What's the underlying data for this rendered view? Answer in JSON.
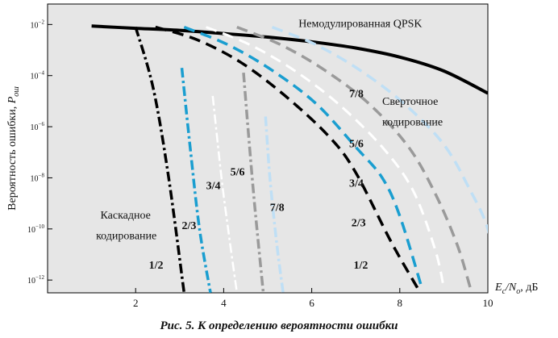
{
  "chart_data": {
    "type": "line",
    "ylabel": "Вероятность ошибки, P_ош",
    "ylabel_main": "Вероятность ошибки, ",
    "ylabel_sym": "P",
    "ylabel_sub": "ош",
    "xlabel": "Ec/No, дБ",
    "xlabel_E": "E",
    "xlabel_c": "c",
    "xlabel_slash": "/N",
    "xlabel_o": "o",
    "xlabel_unit": ", дБ",
    "xlim": [
      0,
      10
    ],
    "ylim_log10": [
      -12.5,
      -1.2
    ],
    "yscale": "log",
    "x_ticks": [
      2,
      4,
      6,
      8,
      10
    ],
    "x_tick_labels": [
      "2",
      "4",
      "6",
      "8",
      "10"
    ],
    "y_ticks": [
      {
        "exp": -2,
        "label_base": "10",
        "label_exp": "−2"
      },
      {
        "exp": -4,
        "label_base": "10",
        "label_exp": "−4"
      },
      {
        "exp": -6,
        "label_base": "10",
        "label_exp": "−6"
      },
      {
        "exp": -8,
        "label_base": "10",
        "label_exp": "−8"
      },
      {
        "exp": -10,
        "label_base": "10",
        "label_exp": "−10"
      },
      {
        "exp": -12,
        "label_base": "10",
        "label_exp": "−12"
      }
    ],
    "grid": false,
    "series": [
      {
        "group": "uncoded",
        "color": "#000000",
        "dash": "solid",
        "width": 4,
        "points": [
          [
            1.0,
            0.0087
          ],
          [
            2.0,
            0.0071
          ],
          [
            3.0,
            0.0059
          ],
          [
            4.0,
            0.0044
          ],
          [
            5.0,
            0.0032
          ],
          [
            6.0,
            0.0021
          ],
          [
            7.0,
            0.0012
          ],
          [
            8.0,
            0.00053
          ],
          [
            9.0,
            0.000151
          ],
          [
            10.0,
            2.04e-05
          ]
        ]
      },
      {
        "group": "concatenated",
        "rate": "1/2",
        "color": "#000000",
        "dash": "dashdot",
        "width": 3.5,
        "points": [
          [
            2.0,
            0.0079
          ],
          [
            2.4,
            3.2e-05
          ],
          [
            2.75,
            1e-08
          ],
          [
            3.1,
            3.2e-13
          ]
        ]
      },
      {
        "group": "concatenated",
        "rate": "2/3",
        "color": "#1a9ed0",
        "dash": "dashdot",
        "width": 3.5,
        "points": [
          [
            3.05,
            0.0002
          ],
          [
            3.25,
            1e-07
          ],
          [
            3.45,
            1e-10
          ],
          [
            3.7,
            3.2e-13
          ]
        ]
      },
      {
        "group": "concatenated",
        "rate": "3/4",
        "color": "#ffffff",
        "dash": "dashdot",
        "width": 2.5,
        "points": [
          [
            3.75,
            1.6e-05
          ],
          [
            3.95,
            1e-08
          ],
          [
            4.1,
            1e-10
          ],
          [
            4.3,
            3.2e-13
          ]
        ]
      },
      {
        "group": "concatenated",
        "rate": "5/6",
        "color": "#9a9a9a",
        "dash": "dashdot",
        "width": 3.5,
        "points": [
          [
            4.45,
            0.00013
          ],
          [
            4.55,
            1e-06
          ],
          [
            4.7,
            1e-09
          ],
          [
            4.9,
            3.2e-13
          ]
        ]
      },
      {
        "group": "concatenated",
        "rate": "7/8",
        "color": "#bfdff5",
        "dash": "dashdot",
        "width": 3.5,
        "points": [
          [
            4.95,
            2.5e-06
          ],
          [
            5.05,
            1e-08
          ],
          [
            5.2,
            3.2e-11
          ],
          [
            5.35,
            3.2e-13
          ]
        ]
      },
      {
        "group": "convolutional",
        "rate": "1/2",
        "color": "#000000",
        "dash": "dashed",
        "width": 3.5,
        "points": [
          [
            2.45,
            0.0079
          ],
          [
            3.4,
            0.0025
          ],
          [
            4.4,
            0.00032
          ],
          [
            5.4,
            1.6e-05
          ],
          [
            6.4,
            4e-07
          ],
          [
            7.0,
            1.6e-08
          ],
          [
            7.8,
            3.2e-11
          ],
          [
            8.4,
            5e-13
          ]
        ]
      },
      {
        "group": "convolutional",
        "rate": "2/3",
        "color": "#1a9ed0",
        "dash": "dashed",
        "width": 3.5,
        "points": [
          [
            3.1,
            0.0079
          ],
          [
            4.1,
            0.0016
          ],
          [
            5.1,
            0.00016
          ],
          [
            6.1,
            7.9e-06
          ],
          [
            7.0,
            1.6e-07
          ],
          [
            7.6,
            1e-08
          ],
          [
            8.0,
            3.2e-10
          ],
          [
            8.5,
            5e-13
          ]
        ]
      },
      {
        "group": "convolutional",
        "rate": "3/4",
        "color": "#ffffff",
        "dash": "dashed",
        "width": 3,
        "points": [
          [
            3.6,
            0.0079
          ],
          [
            4.6,
            0.0016
          ],
          [
            5.6,
            0.00016
          ],
          [
            6.6,
            7.9e-06
          ],
          [
            7.6,
            1.6e-07
          ],
          [
            8.3,
            3.2e-09
          ],
          [
            8.8,
            1.6e-11
          ],
          [
            9.0,
            5e-13
          ]
        ]
      },
      {
        "group": "convolutional",
        "rate": "5/6",
        "color": "#9a9a9a",
        "dash": "dashed",
        "width": 3.5,
        "points": [
          [
            4.3,
            0.0079
          ],
          [
            5.3,
            0.0016
          ],
          [
            6.3,
            0.00016
          ],
          [
            7.3,
            7.9e-06
          ],
          [
            8.2,
            1.6e-07
          ],
          [
            8.8,
            2.5e-09
          ],
          [
            9.3,
            2.5e-11
          ],
          [
            9.6,
            5e-13
          ]
        ]
      },
      {
        "group": "convolutional",
        "rate": "7/8",
        "color": "#bfdff5",
        "dash": "dashed",
        "width": 3.5,
        "points": [
          [
            5.1,
            0.0079
          ],
          [
            6.1,
            0.0016
          ],
          [
            7.1,
            0.00016
          ],
          [
            8.1,
            7.9e-06
          ],
          [
            9.0,
            2e-07
          ],
          [
            9.6,
            3.2e-09
          ],
          [
            10.0,
            1e-10
          ],
          [
            10.3,
            5e-13
          ]
        ]
      }
    ],
    "annotations": [
      {
        "text": "Немодулированная QPSK",
        "x": 5.7,
        "yexp": -2.1,
        "style": "normal",
        "size": 15
      },
      {
        "text": "Сверточное",
        "x": 7.6,
        "yexp": -5.15,
        "style": "normal",
        "size": 15
      },
      {
        "text": "кодирование",
        "x": 7.6,
        "yexp": -5.95,
        "style": "normal",
        "size": 15
      },
      {
        "text": "Каскадное",
        "x": 1.2,
        "yexp": -9.6,
        "style": "normal",
        "size": 14
      },
      {
        "text": "кодирование",
        "x": 1.1,
        "yexp": -10.4,
        "style": "normal",
        "size": 14
      },
      {
        "text": "7/8",
        "x": 6.85,
        "yexp": -4.85,
        "style": "bold",
        "size": 14
      },
      {
        "text": "5/6",
        "x": 6.85,
        "yexp": -6.8,
        "style": "bold",
        "size": 14
      },
      {
        "text": "3/4",
        "x": 6.85,
        "yexp": -8.35,
        "style": "bold",
        "size": 14
      },
      {
        "text": "2/3",
        "x": 6.9,
        "yexp": -9.9,
        "style": "bold",
        "size": 14
      },
      {
        "text": "1/2",
        "x": 6.95,
        "yexp": -11.55,
        "style": "bold",
        "size": 14
      },
      {
        "text": "5/6",
        "x": 4.15,
        "yexp": -7.9,
        "style": "bold",
        "size": 14
      },
      {
        "text": "3/4",
        "x": 3.6,
        "yexp": -8.45,
        "style": "bold",
        "size": 14
      },
      {
        "text": "7/8",
        "x": 5.05,
        "yexp": -9.3,
        "style": "bold",
        "size": 14
      },
      {
        "text": "2/3",
        "x": 3.05,
        "yexp": -10.0,
        "style": "bold",
        "size": 14
      },
      {
        "text": "1/2",
        "x": 2.3,
        "yexp": -11.55,
        "style": "bold",
        "size": 14
      }
    ]
  },
  "caption": "Рис. 5. К определению вероятности ошибки"
}
